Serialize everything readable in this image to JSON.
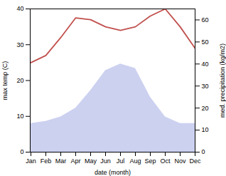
{
  "chart_data": {
    "type": "line",
    "categories": [
      "Jan",
      "Feb",
      "Mar",
      "Apr",
      "May",
      "Jun",
      "Jul",
      "Aug",
      "Sep",
      "Oct",
      "Nov",
      "Dec"
    ],
    "xlabel": "date (month)",
    "ylabel": "max temp (C)",
    "y2label": "med. precipitation (kg/m2)",
    "ylim": [
      0,
      40
    ],
    "yticks": [
      0,
      10,
      20,
      30,
      40
    ],
    "y2lim": [
      0,
      65
    ],
    "y2ticks": [
      0,
      10,
      20,
      30,
      40,
      50,
      60
    ],
    "series": [
      {
        "type": "line",
        "color": "#c0504d",
        "values": [
          25,
          27,
          32,
          37.5,
          37,
          35,
          34,
          35,
          38,
          40,
          35,
          29
        ]
      },
      {
        "type": "area",
        "axis": "y2",
        "color": "#b0b8e8",
        "values": [
          13,
          14,
          16,
          20,
          28,
          37,
          40,
          38,
          25,
          16,
          13,
          13
        ]
      }
    ]
  }
}
